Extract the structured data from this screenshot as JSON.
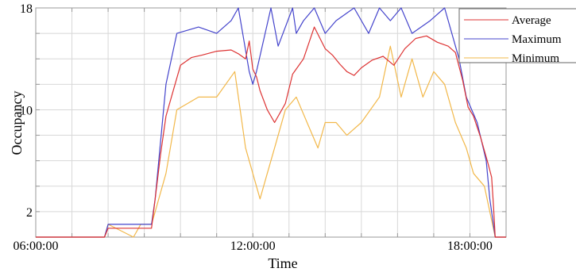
{
  "chart_data": {
    "type": "line",
    "xlabel": "Time",
    "ylabel": "Occupancy",
    "x_unit": "hours",
    "xlim": [
      6.0,
      19.0
    ],
    "ylim": [
      0,
      18
    ],
    "x_ticks": [
      6,
      12,
      18
    ],
    "x_tick_labels": [
      "06:00:00",
      "12:00:00",
      "18:00:00"
    ],
    "y_ticks": [
      2,
      10,
      18
    ],
    "y_tick_labels": [
      "2",
      "10",
      "18"
    ],
    "grid": true,
    "legend_position": "top-right",
    "colors": {
      "average": "#dd3333",
      "maximum": "#4444cc",
      "minimum": "#f2b84a",
      "grid": "#d8d8d8",
      "axis": "#999999"
    },
    "series": [
      {
        "name": "Average",
        "x": [
          6.0,
          7.9,
          8.0,
          9.2,
          9.3,
          9.45,
          9.6,
          9.8,
          10.0,
          10.3,
          10.6,
          11.0,
          11.4,
          11.6,
          11.8,
          11.9,
          12.0,
          12.1,
          12.2,
          12.4,
          12.6,
          12.9,
          13.1,
          13.4,
          13.7,
          14.0,
          14.2,
          14.4,
          14.6,
          14.8,
          15.0,
          15.3,
          15.6,
          15.9,
          16.2,
          16.5,
          16.8,
          17.1,
          17.4,
          17.6,
          17.8,
          17.95,
          18.1,
          18.3,
          18.5,
          18.6,
          18.65,
          18.7,
          19.0
        ],
        "y": [
          0,
          0,
          0.7,
          0.7,
          3.0,
          6.5,
          9.5,
          11.5,
          13.5,
          14.1,
          14.3,
          14.6,
          14.7,
          14.4,
          14.0,
          15.4,
          13.2,
          12.6,
          11.5,
          10.0,
          9.0,
          10.5,
          12.8,
          14.0,
          16.5,
          14.8,
          14.3,
          13.6,
          13.0,
          12.7,
          13.3,
          13.9,
          14.2,
          13.5,
          14.8,
          15.6,
          15.8,
          15.3,
          15.0,
          14.5,
          12.3,
          10.2,
          9.5,
          7.8,
          5.8,
          4.7,
          2.5,
          0,
          0
        ]
      },
      {
        "name": "Maximum",
        "x": [
          6.0,
          7.9,
          8.0,
          9.2,
          9.3,
          9.6,
          9.9,
          10.5,
          11.0,
          11.4,
          11.6,
          11.9,
          12.0,
          12.1,
          12.5,
          12.7,
          13.1,
          13.2,
          13.4,
          13.7,
          14.0,
          14.3,
          14.8,
          15.2,
          15.5,
          15.8,
          16.1,
          16.4,
          16.9,
          17.3,
          17.5,
          17.7,
          17.9,
          18.2,
          18.45,
          18.55,
          18.7,
          19.0
        ],
        "y": [
          0,
          0,
          1,
          1,
          3,
          12,
          16,
          16.5,
          16,
          17,
          18,
          13,
          12,
          13,
          18,
          15,
          18,
          16,
          17,
          18,
          16,
          17,
          18,
          16,
          18,
          17,
          18,
          16,
          17,
          18,
          16,
          14,
          11,
          9,
          6,
          3,
          0,
          0
        ]
      },
      {
        "name": "Minimum",
        "x": [
          6.0,
          7.9,
          8.0,
          8.7,
          8.9,
          9.2,
          9.3,
          9.6,
          9.9,
          10.5,
          11.0,
          11.5,
          11.8,
          12.0,
          12.2,
          12.4,
          12.6,
          12.9,
          13.2,
          13.5,
          13.8,
          14.0,
          14.3,
          14.6,
          15.0,
          15.5,
          15.8,
          16.1,
          16.4,
          16.7,
          17.0,
          17.3,
          17.6,
          17.9,
          18.1,
          18.4,
          18.55,
          18.7,
          19.0
        ],
        "y": [
          0,
          0,
          1,
          0,
          1,
          1,
          2,
          5,
          10,
          11,
          11,
          13,
          7,
          5,
          3,
          5,
          7,
          10,
          11,
          9,
          7,
          9,
          9,
          8,
          9,
          11,
          15,
          11,
          14,
          11,
          13,
          12,
          9,
          7,
          5,
          4,
          2,
          0,
          0
        ]
      }
    ]
  }
}
